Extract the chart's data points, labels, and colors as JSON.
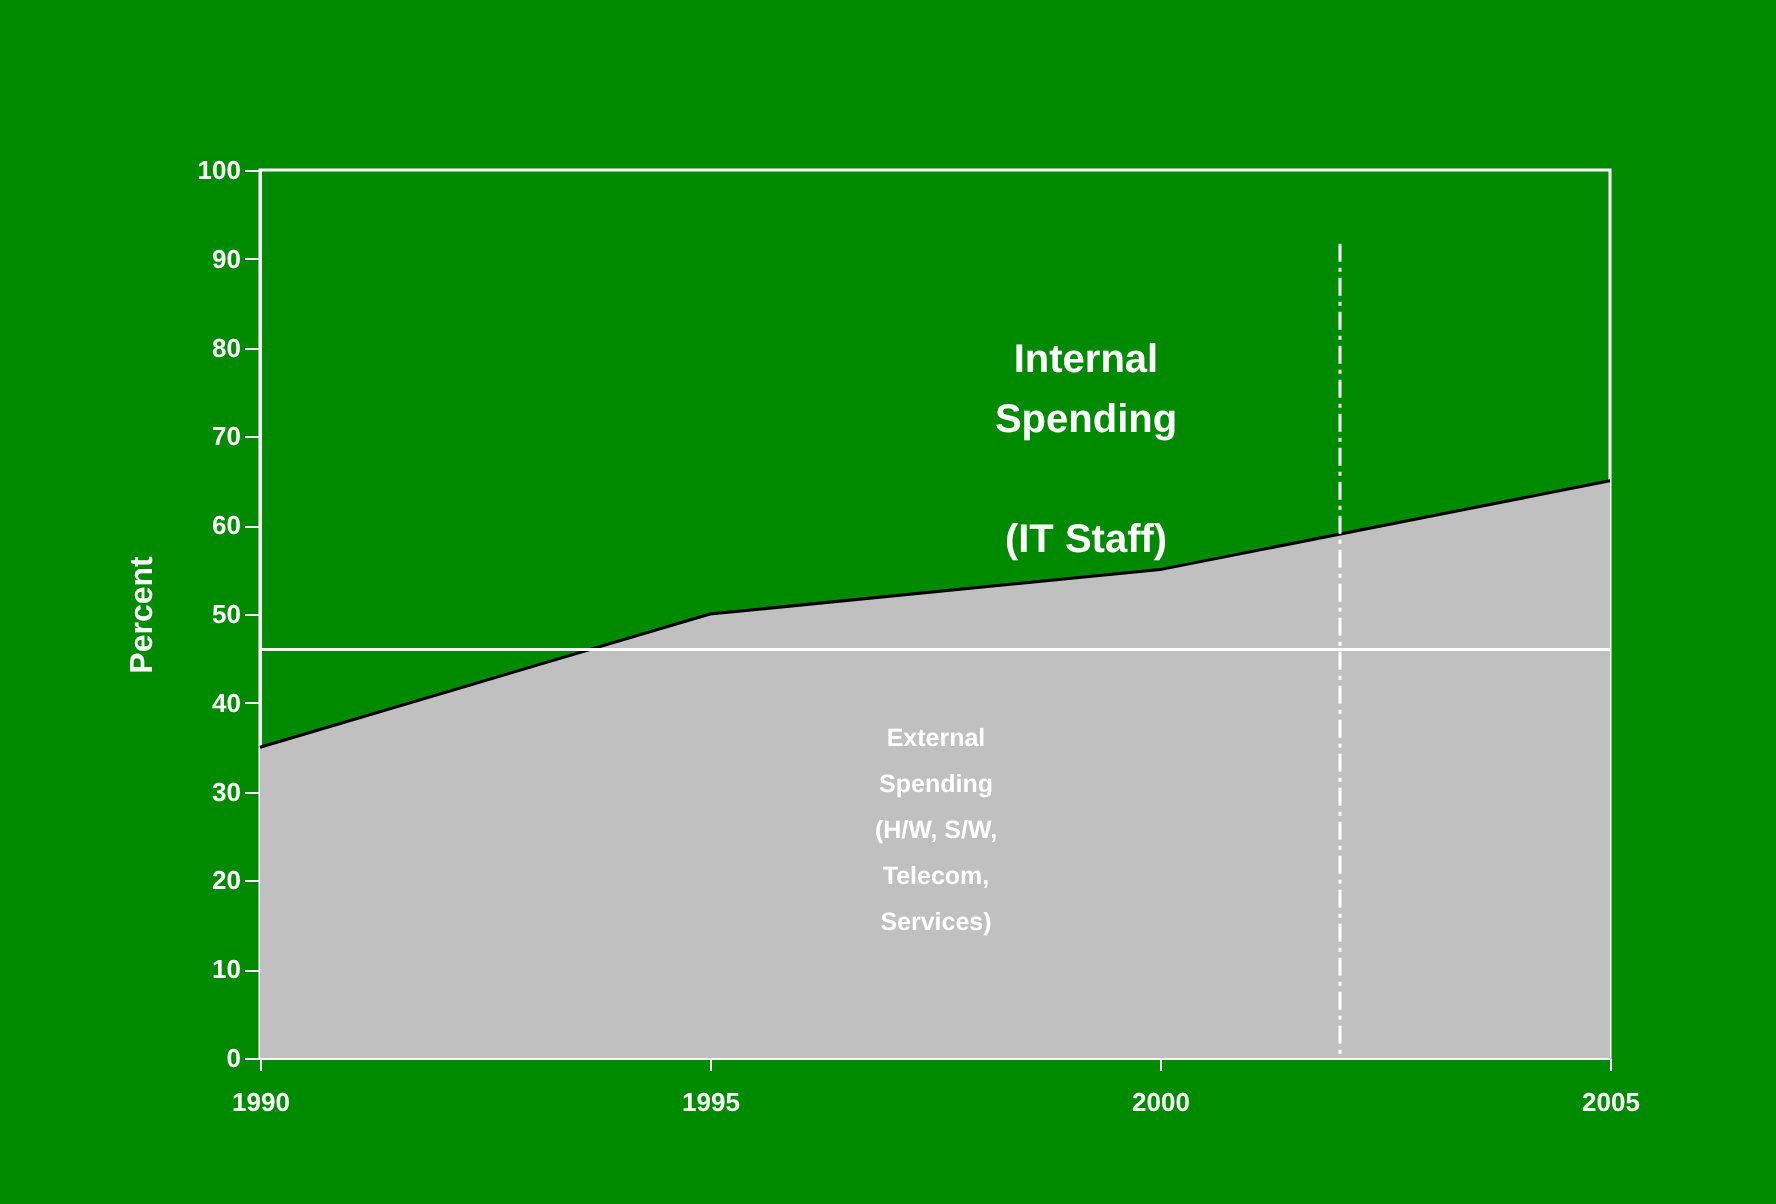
{
  "chart_data": {
    "type": "area",
    "ylabel": "Percent",
    "x": [
      1990,
      1995,
      2000,
      2005
    ],
    "series": [
      {
        "color": "#c0c0c0",
        "values": [
          35,
          50,
          55,
          65
        ]
      }
    ],
    "xlim": [
      1990,
      2005
    ],
    "xticks": [
      1990,
      1995,
      2000,
      2005
    ],
    "ylim": [
      0,
      100
    ],
    "yticks": [
      0,
      10,
      20,
      30,
      40,
      50,
      60,
      70,
      80,
      90,
      100
    ],
    "grid": false,
    "ref_lines": [
      {
        "axis": "y",
        "value": 46,
        "color": "#ffffff",
        "line_style": "solid"
      },
      {
        "axis": "x",
        "value": 2002,
        "color": "#ffffff",
        "line_style": "dashdot"
      }
    ],
    "annotations": [
      "Internal\nSpending\n\n(IT Staff)",
      "External\nSpending\n(H/W, S/W,\nTelecom,\nServices)"
    ]
  }
}
